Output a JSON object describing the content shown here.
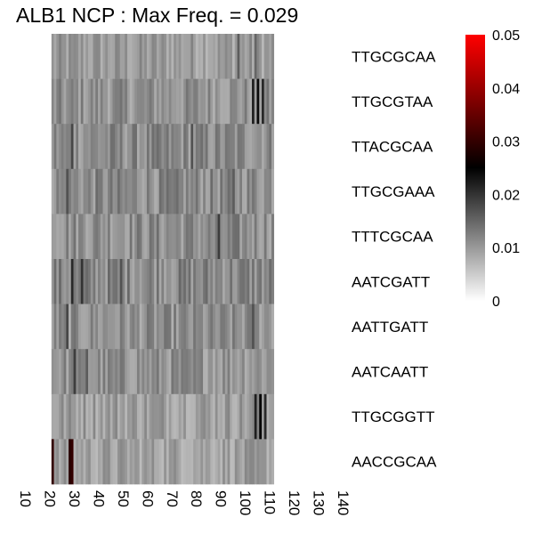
{
  "chart_data": {
    "type": "heatmap",
    "title": "ALB1 NCP : Max Freq. = 0.029",
    "x_ticks": [
      "10",
      "20",
      "30",
      "40",
      "50",
      "60",
      "70",
      "80",
      "90",
      "100",
      "110",
      "120",
      "130",
      "140"
    ],
    "x_range": [
      10,
      140
    ],
    "data_x_range": [
      21,
      111
    ],
    "rows": [
      {
        "label": "TTGCGCAA",
        "mean": 0.0095,
        "spikes": [
          {
            "x": 97,
            "v": 0.016
          },
          {
            "x": 104,
            "v": 0.015
          }
        ]
      },
      {
        "label": "TTGCGTAA",
        "mean": 0.0105,
        "spikes": [
          {
            "x": 103,
            "v": 0.022
          },
          {
            "x": 105,
            "v": 0.024
          },
          {
            "x": 107,
            "v": 0.021
          }
        ]
      },
      {
        "label": "TTACGCAA",
        "mean": 0.011,
        "spikes": [
          {
            "x": 29,
            "v": 0.018
          },
          {
            "x": 78,
            "v": 0.017
          }
        ]
      },
      {
        "label": "TTGCGAAA",
        "mean": 0.011,
        "spikes": [
          {
            "x": 27,
            "v": 0.017
          },
          {
            "x": 95,
            "v": 0.016
          }
        ]
      },
      {
        "label": "TTTCGCAA",
        "mean": 0.011,
        "spikes": [
          {
            "x": 89,
            "v": 0.019
          }
        ]
      },
      {
        "label": "AATCGATT",
        "mean": 0.0115,
        "spikes": [
          {
            "x": 29,
            "v": 0.021
          },
          {
            "x": 33,
            "v": 0.02
          },
          {
            "x": 49,
            "v": 0.017
          }
        ]
      },
      {
        "label": "AATTGATT",
        "mean": 0.0105,
        "spikes": [
          {
            "x": 27,
            "v": 0.018
          },
          {
            "x": 103,
            "v": 0.017
          }
        ]
      },
      {
        "label": "AATCAATT",
        "mean": 0.0105,
        "spikes": [
          {
            "x": 30,
            "v": 0.019
          },
          {
            "x": 35,
            "v": 0.016
          }
        ]
      },
      {
        "label": "TTGCGGTT",
        "mean": 0.0095,
        "spikes": [
          {
            "x": 104,
            "v": 0.022
          },
          {
            "x": 106,
            "v": 0.025
          },
          {
            "x": 108,
            "v": 0.021
          }
        ]
      },
      {
        "label": "AACCGCAA",
        "mean": 0.009,
        "spikes": [
          {
            "x": 21,
            "v": 0.03
          },
          {
            "x": 28,
            "v": 0.029
          },
          {
            "x": 29,
            "v": 0.03
          }
        ]
      }
    ],
    "colorbar": {
      "range": [
        0,
        0.05
      ],
      "ticks": [
        "0.05",
        "0.04",
        "0.03",
        "0.02",
        "0.01",
        "0"
      ],
      "colors": [
        "#ffffff",
        "#000000",
        "#ff0000"
      ]
    },
    "grid": false,
    "legend": "right"
  }
}
